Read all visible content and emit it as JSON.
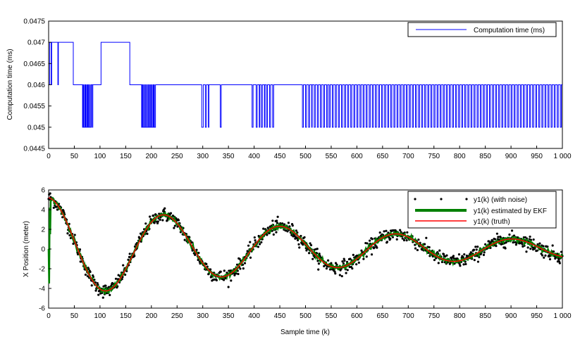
{
  "chart_data": [
    {
      "type": "line",
      "title": "",
      "xlabel": "",
      "ylabel": "Computation time (ms)",
      "xlim": [
        0,
        1000
      ],
      "ylim": [
        0.0445,
        0.0475
      ],
      "x_ticks": [
        0,
        50,
        100,
        150,
        200,
        250,
        300,
        350,
        400,
        450,
        500,
        550,
        600,
        650,
        700,
        750,
        800,
        850,
        900,
        950,
        1000
      ],
      "x_tick_labels": [
        "0",
        "50",
        "100",
        "150",
        "200",
        "250",
        "300",
        "350",
        "400",
        "450",
        "500",
        "550",
        "600",
        "650",
        "700",
        "750",
        "800",
        "850",
        "900",
        "950",
        "1 000"
      ],
      "y_ticks": [
        0.0445,
        0.045,
        0.0455,
        0.046,
        0.0465,
        0.047,
        0.0475
      ],
      "y_tick_labels": [
        "0.0445",
        "0.045",
        "0.0455",
        "0.046",
        "0.0465",
        "0.047",
        "0.0475"
      ],
      "legend_position": "top-right",
      "grid": false,
      "series": [
        {
          "name": "Computation time (ms)",
          "color": "#0000ff",
          "style": "step",
          "segments": [
            [
              0,
              0.046
            ],
            [
              2,
              0.047
            ],
            [
              5,
              0.046
            ],
            [
              6,
              0.047
            ],
            [
              18,
              0.046
            ],
            [
              19,
              0.047
            ],
            [
              48,
              0.046
            ],
            [
              66,
              0.045
            ],
            [
              67,
              0.046
            ],
            [
              68,
              0.045
            ],
            [
              70,
              0.046
            ],
            [
              71,
              0.045
            ],
            [
              72,
              0.046
            ],
            [
              73,
              0.045
            ],
            [
              75,
              0.046
            ],
            [
              76,
              0.045
            ],
            [
              77,
              0.046
            ],
            [
              78,
              0.045
            ],
            [
              80,
              0.046
            ],
            [
              81,
              0.045
            ],
            [
              83,
              0.046
            ],
            [
              85,
              0.045
            ],
            [
              86,
              0.046
            ],
            [
              102,
              0.047
            ],
            [
              158,
              0.046
            ],
            [
              181,
              0.045
            ],
            [
              182,
              0.046
            ],
            [
              183,
              0.045
            ],
            [
              185,
              0.046
            ],
            [
              186,
              0.045
            ],
            [
              188,
              0.046
            ],
            [
              189,
              0.045
            ],
            [
              191,
              0.046
            ],
            [
              192,
              0.045
            ],
            [
              194,
              0.046
            ],
            [
              195,
              0.045
            ],
            [
              197,
              0.046
            ],
            [
              198,
              0.045
            ],
            [
              200,
              0.046
            ],
            [
              201,
              0.045
            ],
            [
              203,
              0.046
            ],
            [
              204,
              0.045
            ],
            [
              205,
              0.046
            ],
            [
              206,
              0.045
            ],
            [
              208,
              0.046
            ],
            [
              298,
              0.045
            ],
            [
              301,
              0.046
            ],
            [
              305,
              0.045
            ],
            [
              307,
              0.046
            ],
            [
              311,
              0.045
            ],
            [
              312,
              0.046
            ],
            [
              334,
              0.045
            ],
            [
              336,
              0.046
            ],
            [
              396,
              0.045
            ],
            [
              398,
              0.046
            ],
            [
              404,
              0.045
            ],
            [
              406,
              0.046
            ],
            [
              410,
              0.045
            ],
            [
              411,
              0.046
            ],
            [
              414,
              0.045
            ],
            [
              416,
              0.046
            ],
            [
              420,
              0.045
            ],
            [
              421,
              0.046
            ],
            [
              424,
              0.045
            ],
            [
              426,
              0.046
            ],
            [
              430,
              0.045
            ],
            [
              432,
              0.046
            ],
            [
              436,
              0.045
            ],
            [
              438,
              0.046
            ],
            [
              494,
              0.045
            ],
            [
              496,
              0.046
            ],
            [
              500,
              0.045
            ],
            [
              502,
              0.046
            ],
            [
              506,
              0.045
            ],
            [
              508,
              0.046
            ],
            [
              512,
              0.045
            ],
            [
              513,
              0.046
            ],
            [
              517,
              0.045
            ],
            [
              519,
              0.046
            ],
            [
              523,
              0.045
            ],
            [
              525,
              0.046
            ],
            [
              529,
              0.045
            ],
            [
              531,
              0.046
            ],
            [
              535,
              0.045
            ],
            [
              537,
              0.046
            ],
            [
              541,
              0.045
            ],
            [
              543,
              0.046
            ],
            [
              546,
              0.045
            ],
            [
              548,
              0.046
            ],
            [
              552,
              0.045
            ],
            [
              554,
              0.046
            ],
            [
              558,
              0.045
            ],
            [
              560,
              0.046
            ],
            [
              564,
              0.045
            ],
            [
              566,
              0.046
            ],
            [
              570,
              0.045
            ],
            [
              572,
              0.046
            ],
            [
              576,
              0.045
            ],
            [
              578,
              0.046
            ],
            [
              582,
              0.045
            ],
            [
              584,
              0.046
            ],
            [
              588,
              0.045
            ],
            [
              590,
              0.046
            ],
            [
              594,
              0.045
            ],
            [
              596,
              0.046
            ],
            [
              600,
              0.045
            ],
            [
              602,
              0.046
            ],
            [
              606,
              0.045
            ],
            [
              608,
              0.046
            ],
            [
              612,
              0.045
            ],
            [
              614,
              0.046
            ],
            [
              618,
              0.045
            ],
            [
              620,
              0.046
            ],
            [
              624,
              0.045
            ],
            [
              626,
              0.046
            ],
            [
              630,
              0.045
            ],
            [
              632,
              0.046
            ],
            [
              636,
              0.045
            ],
            [
              638,
              0.046
            ],
            [
              642,
              0.045
            ],
            [
              644,
              0.046
            ],
            [
              648,
              0.045
            ],
            [
              650,
              0.046
            ],
            [
              654,
              0.045
            ],
            [
              656,
              0.046
            ],
            [
              660,
              0.045
            ],
            [
              662,
              0.046
            ],
            [
              666,
              0.045
            ],
            [
              668,
              0.046
            ],
            [
              672,
              0.045
            ],
            [
              674,
              0.046
            ],
            [
              678,
              0.045
            ],
            [
              680,
              0.046
            ],
            [
              684,
              0.045
            ],
            [
              686,
              0.046
            ],
            [
              690,
              0.045
            ],
            [
              692,
              0.046
            ],
            [
              696,
              0.045
            ],
            [
              698,
              0.046
            ],
            [
              702,
              0.045
            ],
            [
              704,
              0.046
            ],
            [
              708,
              0.045
            ],
            [
              710,
              0.046
            ],
            [
              714,
              0.045
            ],
            [
              716,
              0.046
            ],
            [
              720,
              0.045
            ],
            [
              722,
              0.046
            ],
            [
              726,
              0.045
            ],
            [
              728,
              0.046
            ],
            [
              732,
              0.045
            ],
            [
              734,
              0.046
            ],
            [
              738,
              0.045
            ],
            [
              740,
              0.046
            ],
            [
              744,
              0.045
            ],
            [
              746,
              0.046
            ],
            [
              750,
              0.045
            ],
            [
              752,
              0.046
            ],
            [
              756,
              0.045
            ],
            [
              758,
              0.046
            ],
            [
              762,
              0.045
            ],
            [
              764,
              0.046
            ],
            [
              768,
              0.045
            ],
            [
              770,
              0.046
            ],
            [
              774,
              0.045
            ],
            [
              776,
              0.046
            ],
            [
              780,
              0.045
            ],
            [
              782,
              0.046
            ],
            [
              786,
              0.045
            ],
            [
              788,
              0.046
            ],
            [
              792,
              0.045
            ],
            [
              794,
              0.046
            ],
            [
              798,
              0.045
            ],
            [
              800,
              0.046
            ],
            [
              804,
              0.045
            ],
            [
              806,
              0.046
            ],
            [
              810,
              0.045
            ],
            [
              812,
              0.046
            ],
            [
              816,
              0.045
            ],
            [
              818,
              0.046
            ],
            [
              822,
              0.045
            ],
            [
              824,
              0.046
            ],
            [
              828,
              0.045
            ],
            [
              830,
              0.046
            ],
            [
              834,
              0.045
            ],
            [
              836,
              0.046
            ],
            [
              840,
              0.045
            ],
            [
              842,
              0.046
            ],
            [
              846,
              0.045
            ],
            [
              848,
              0.046
            ],
            [
              852,
              0.045
            ],
            [
              854,
              0.046
            ],
            [
              858,
              0.045
            ],
            [
              860,
              0.046
            ],
            [
              864,
              0.045
            ],
            [
              866,
              0.046
            ],
            [
              870,
              0.045
            ],
            [
              872,
              0.046
            ],
            [
              876,
              0.045
            ],
            [
              878,
              0.046
            ],
            [
              882,
              0.045
            ],
            [
              884,
              0.046
            ],
            [
              888,
              0.045
            ],
            [
              890,
              0.046
            ],
            [
              894,
              0.045
            ],
            [
              896,
              0.046
            ],
            [
              900,
              0.045
            ],
            [
              902,
              0.046
            ],
            [
              906,
              0.045
            ],
            [
              908,
              0.046
            ],
            [
              912,
              0.045
            ],
            [
              914,
              0.046
            ],
            [
              918,
              0.045
            ],
            [
              920,
              0.046
            ],
            [
              924,
              0.045
            ],
            [
              926,
              0.046
            ],
            [
              930,
              0.045
            ],
            [
              932,
              0.046
            ],
            [
              936,
              0.045
            ],
            [
              938,
              0.046
            ],
            [
              942,
              0.045
            ],
            [
              944,
              0.046
            ],
            [
              948,
              0.045
            ],
            [
              950,
              0.046
            ],
            [
              954,
              0.045
            ],
            [
              956,
              0.046
            ],
            [
              960,
              0.045
            ],
            [
              962,
              0.046
            ],
            [
              966,
              0.045
            ],
            [
              968,
              0.046
            ],
            [
              972,
              0.045
            ],
            [
              974,
              0.046
            ],
            [
              978,
              0.045
            ],
            [
              980,
              0.046
            ],
            [
              984,
              0.045
            ],
            [
              986,
              0.046
            ],
            [
              990,
              0.045
            ],
            [
              992,
              0.046
            ],
            [
              996,
              0.045
            ],
            [
              998,
              0.046
            ],
            [
              1000,
              0.046
            ]
          ]
        }
      ]
    },
    {
      "type": "line",
      "title": "",
      "xlabel": "Sample time (k)",
      "ylabel": "X Position (meter)",
      "xlim": [
        0,
        1000
      ],
      "ylim": [
        -6,
        6
      ],
      "x_ticks": [
        0,
        50,
        100,
        150,
        200,
        250,
        300,
        350,
        400,
        450,
        500,
        550,
        600,
        650,
        700,
        750,
        800,
        850,
        900,
        950,
        1000
      ],
      "x_tick_labels": [
        "0",
        "50",
        "100",
        "150",
        "200",
        "250",
        "300",
        "350",
        "400",
        "450",
        "500",
        "550",
        "600",
        "650",
        "700",
        "750",
        "800",
        "850",
        "900",
        "950",
        "1 000"
      ],
      "y_ticks": [
        -6,
        -4,
        -2,
        0,
        2,
        4,
        6
      ],
      "y_tick_labels": [
        "-6",
        "-4",
        "-2",
        "0",
        "2",
        "4",
        "6"
      ],
      "legend_position": "top-right",
      "grid": false,
      "model": {
        "amplitude": 5.2,
        "damping_per_sample": 0.0018,
        "period_samples": 226,
        "noise_std": 0.35
      },
      "series": [
        {
          "name": "y1(k) (with noise)",
          "color": "#000000",
          "style": "points"
        },
        {
          "name": "y1(k) estimated by EKF",
          "color": "#008000",
          "style": "line"
        },
        {
          "name": "y1(k) (truth)",
          "color": "#ff0000",
          "style": "line"
        }
      ]
    }
  ]
}
